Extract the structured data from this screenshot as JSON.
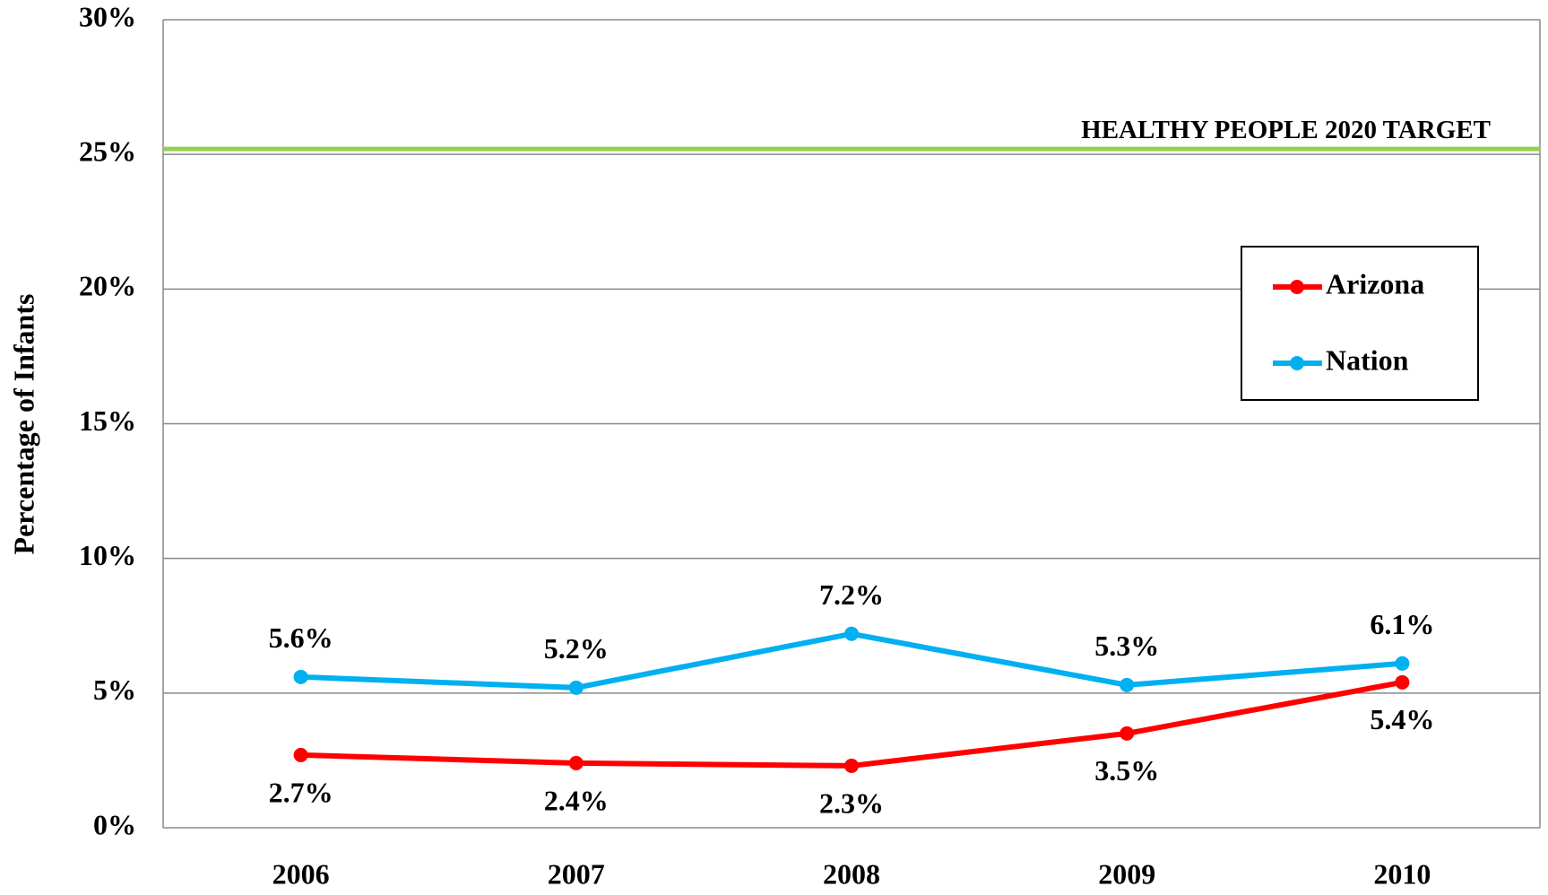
{
  "chart_data": {
    "type": "line",
    "y_axis_label": "Percentage of Infants",
    "categories": [
      "2006",
      "2007",
      "2008",
      "2009",
      "2010"
    ],
    "series": [
      {
        "name": "Arizona",
        "color": "#ff0000",
        "values": [
          2.7,
          2.4,
          2.3,
          3.5,
          5.4
        ],
        "value_labels": [
          "2.7%",
          "2.4%",
          "2.3%",
          "3.5%",
          "5.4%"
        ]
      },
      {
        "name": "Nation",
        "color": "#00b0f0",
        "values": [
          5.6,
          5.2,
          7.2,
          5.3,
          6.1
        ],
        "value_labels": [
          "5.6%",
          "5.2%",
          "7.2%",
          "5.3%",
          "6.1%"
        ]
      }
    ],
    "target": {
      "label": "HEALTHY PEOPLE 2020 TARGET",
      "value": 25.2,
      "color": "#92d050"
    },
    "ylim": [
      0,
      30
    ],
    "yticks": [
      {
        "value": 0,
        "label": "0%"
      },
      {
        "value": 5,
        "label": "5%"
      },
      {
        "value": 10,
        "label": "10%"
      },
      {
        "value": 15,
        "label": "15%"
      },
      {
        "value": 20,
        "label": "20%"
      },
      {
        "value": 25,
        "label": "25%"
      },
      {
        "value": 30,
        "label": "30%"
      }
    ],
    "grid": true,
    "legend": "right"
  }
}
